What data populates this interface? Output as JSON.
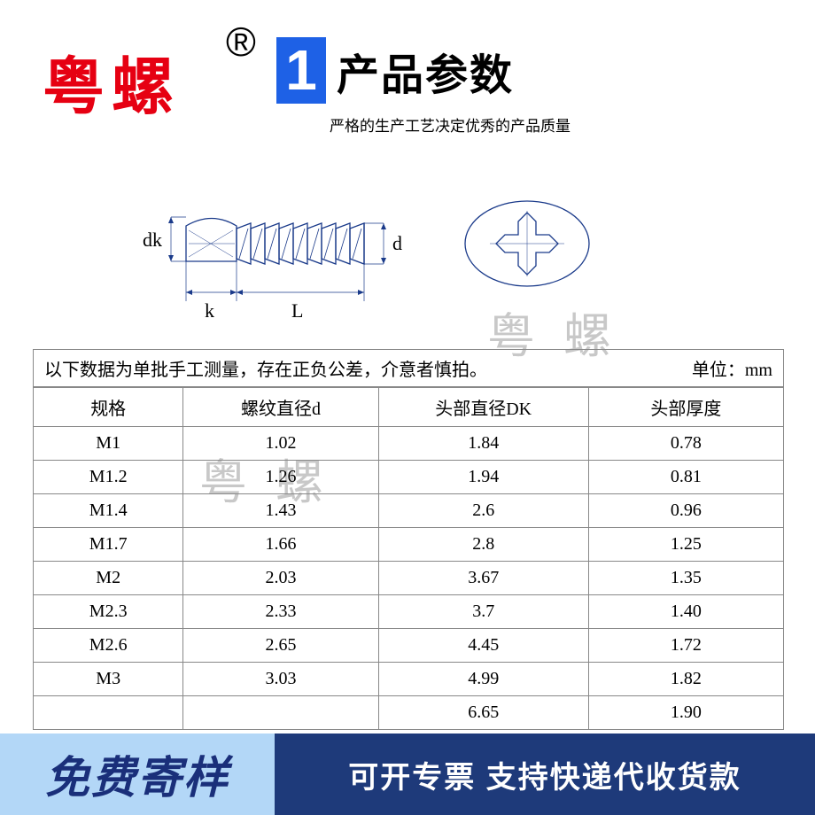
{
  "brand": "粤螺",
  "registered": "®",
  "title_number": "1",
  "title": "产品参数",
  "subtitle": "严格的生产工艺决定优秀的产品质量",
  "watermark": "粤螺",
  "diagram": {
    "labels": {
      "dk": "dk",
      "k": "k",
      "L": "L",
      "d": "d"
    },
    "stroke_color": "#1a3a8a",
    "stroke_width": 1.2
  },
  "table": {
    "note": "以下数据为单批手工测量，存在正负公差，介意者慎拍。",
    "unit_label": "单位：mm",
    "columns": [
      "规格",
      "螺纹直径d",
      "头部直径DK",
      "头部厚度"
    ],
    "rows": [
      [
        "M1",
        "1.02",
        "1.84",
        "0.78"
      ],
      [
        "M1.2",
        "1.26",
        "1.94",
        "0.81"
      ],
      [
        "M1.4",
        "1.43",
        "2.6",
        "0.96"
      ],
      [
        "M1.7",
        "1.66",
        "2.8",
        "1.25"
      ],
      [
        "M2",
        "2.03",
        "3.67",
        "1.35"
      ],
      [
        "M2.3",
        "2.33",
        "3.7",
        "1.40"
      ],
      [
        "M2.6",
        "2.65",
        "4.45",
        "1.72"
      ],
      [
        "M3",
        "3.03",
        "4.99",
        "1.82"
      ],
      [
        "",
        "",
        "6.65",
        "1.90"
      ]
    ],
    "border_color": "#888888"
  },
  "banner": {
    "left": "免费寄样",
    "right": "可开专票 支持快递代收货款",
    "left_bg": "#b3d7f7",
    "left_color": "#1a2f7a",
    "right_bg": "#1e3a7a",
    "right_color": "#ffffff"
  }
}
